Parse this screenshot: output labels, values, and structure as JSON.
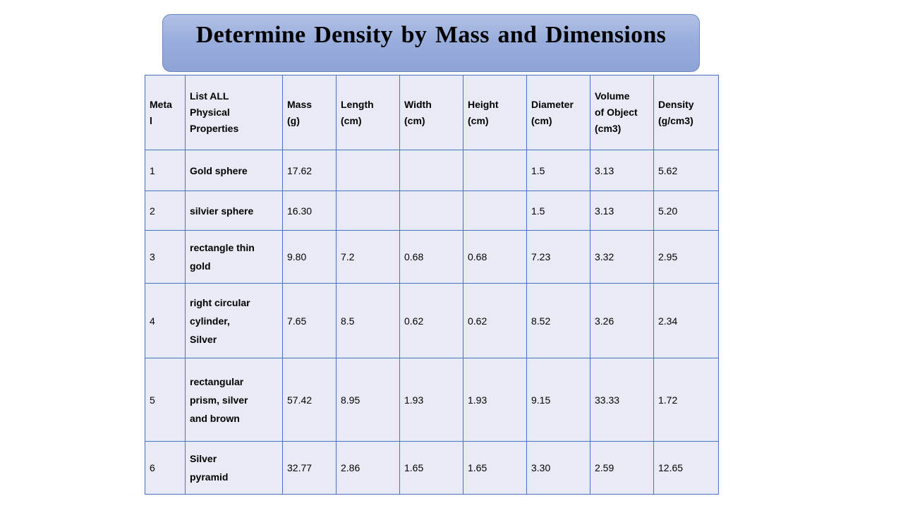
{
  "title": "Determine Density by Mass and Dimensions",
  "headers": [
    "Meta\nl",
    "List ALL\nPhysical\nProperties",
    "Mass\n(g)",
    "Length\n(cm)",
    "Width\n(cm)",
    "Height\n(cm)",
    "Diameter\n(cm)",
    "Volume\nof Object\n(cm3)",
    "Density\n(g/cm3)"
  ],
  "rows": [
    [
      "1",
      "Gold sphere",
      "17.62",
      "",
      "",
      "",
      "1.5",
      "3.13",
      "5.62"
    ],
    [
      "2",
      "silvier sphere",
      "16.30",
      "",
      "",
      "",
      "1.5",
      "3.13",
      "5.20"
    ],
    [
      "3",
      "rectangle thin\ngold",
      "9.80",
      "7.2",
      "0.68",
      "0.68",
      "7.23",
      "3.32",
      "2.95"
    ],
    [
      "4",
      "right circular\ncylinder,\nSilver",
      "7.65",
      "8.5",
      "0.62",
      "0.62",
      "8.52",
      "3.26",
      "2.34"
    ],
    [
      "5",
      "rectangular\nprism, silver\nand brown",
      "57.42",
      "8.95",
      "1.93",
      "1.93",
      "9.15",
      "33.33",
      "1.72"
    ],
    [
      "6",
      "Silver\npyramid",
      "32.77",
      "2.86",
      "1.65",
      "1.65",
      "3.30",
      "2.59",
      "12.65"
    ]
  ]
}
